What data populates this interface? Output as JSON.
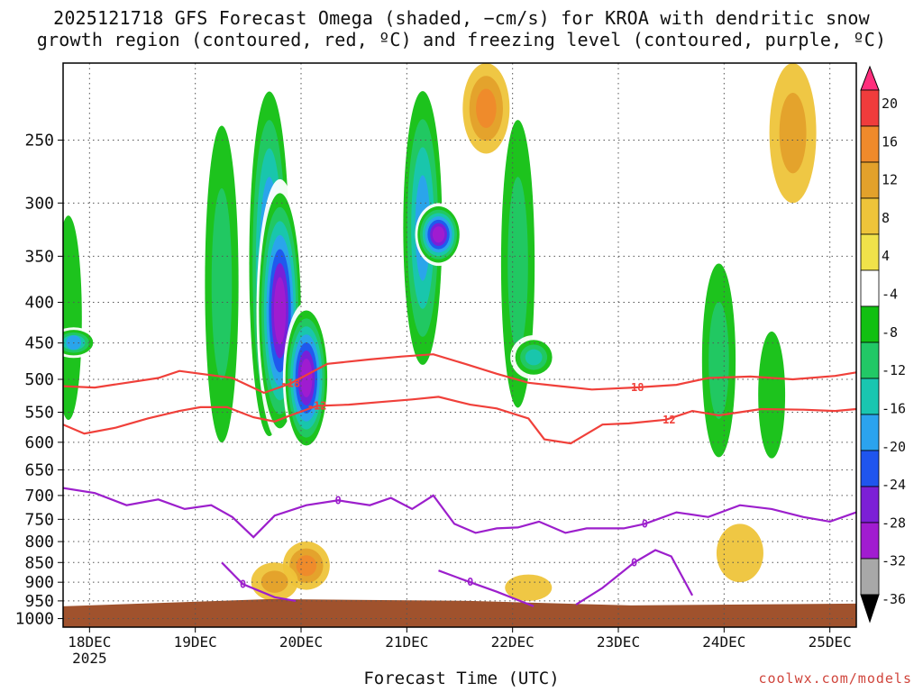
{
  "title": {
    "line1": "2025121718 GFS Forecast Omega (shaded, −cm/s) for KROA with dendritic snow",
    "line2": "growth region (contoured, red, ºC) and freezing level (contoured, purple, ºC)"
  },
  "credit": "coolwx.com/models",
  "chart_data": {
    "type": "heatmap",
    "xlabel": "Forecast Time (UTC)",
    "ylabel": "",
    "x_ticks": [
      "18DEC",
      "19DEC",
      "20DEC",
      "21DEC",
      "22DEC",
      "23DEC",
      "24DEC",
      "25DEC"
    ],
    "x_tick_sub": "2025",
    "x_range": [
      "2025-12-17 18Z",
      "2025-12-25 06Z"
    ],
    "y_ticks": [
      250,
      300,
      350,
      400,
      450,
      500,
      550,
      600,
      650,
      700,
      750,
      800,
      850,
      900,
      950,
      1000
    ],
    "y_range_hpa": [
      1025,
      200
    ],
    "y_scale": "log",
    "grid": "dotted",
    "colorbar": {
      "labels": [
        20,
        16,
        12,
        8,
        4,
        -4,
        -8,
        -12,
        -16,
        -20,
        -24,
        -28,
        -32,
        -36
      ],
      "colors": [
        "#ff2e7c",
        "#f03c3c",
        "#ef8a2b",
        "#e3a12b",
        "#eec43a",
        "#f0e24a",
        "#ffffff",
        "#11c011",
        "#22c866",
        "#19c6b0",
        "#2ba3ee",
        "#1f55ee",
        "#7c1fd6",
        "#a11cd0",
        "#a8a8a8",
        "#000000"
      ]
    },
    "dendritic_contours": {
      "color": "#f0403a",
      "levels": [
        {
          "label": "-18",
          "points": [
            [
              0.0,
              510
            ],
            [
              0.3,
              512
            ],
            [
              0.6,
              505
            ],
            [
              0.9,
              498
            ],
            [
              1.1,
              488
            ],
            [
              1.3,
              492
            ],
            [
              1.6,
              498
            ],
            [
              1.9,
              520
            ],
            [
              2.15,
              506
            ],
            [
              2.5,
              478
            ],
            [
              2.9,
              472
            ],
            [
              3.2,
              468
            ],
            [
              3.5,
              465
            ],
            [
              3.8,
              478
            ],
            [
              4.1,
              492
            ],
            [
              4.4,
              505
            ],
            [
              4.7,
              510
            ],
            [
              5.0,
              515
            ],
            [
              5.4,
              512
            ],
            [
              5.8,
              508
            ],
            [
              6.1,
              498
            ],
            [
              6.5,
              496
            ],
            [
              6.9,
              500
            ],
            [
              7.3,
              495
            ],
            [
              7.5,
              490
            ]
          ]
        },
        {
          "label": "-12",
          "points": [
            [
              0.0,
              570
            ],
            [
              0.2,
              585
            ],
            [
              0.5,
              575
            ],
            [
              0.8,
              560
            ],
            [
              1.1,
              548
            ],
            [
              1.3,
              542
            ],
            [
              1.55,
              542
            ],
            [
              1.8,
              558
            ],
            [
              2.0,
              565
            ],
            [
              2.15,
              555
            ],
            [
              2.4,
              540
            ],
            [
              2.7,
              538
            ],
            [
              3.0,
              534
            ],
            [
              3.3,
              530
            ],
            [
              3.55,
              526
            ],
            [
              3.85,
              538
            ],
            [
              4.1,
              544
            ],
            [
              4.4,
              560
            ],
            [
              4.55,
              595
            ],
            [
              4.8,
              602
            ],
            [
              5.1,
              570
            ],
            [
              5.35,
              568
            ],
            [
              5.7,
              562
            ],
            [
              5.95,
              548
            ],
            [
              6.2,
              555
            ],
            [
              6.4,
              550
            ],
            [
              6.6,
              545
            ],
            [
              7.0,
              546
            ],
            [
              7.3,
              548
            ],
            [
              7.5,
              545
            ]
          ]
        }
      ]
    },
    "freezing_contours": {
      "color": "#9c1fcc",
      "levels": [
        {
          "label": "0",
          "points": [
            [
              0.0,
              685
            ],
            [
              0.3,
              695
            ],
            [
              0.6,
              720
            ],
            [
              0.9,
              708
            ],
            [
              1.15,
              728
            ],
            [
              1.4,
              720
            ],
            [
              1.6,
              745
            ],
            [
              1.8,
              790
            ],
            [
              2.0,
              742
            ],
            [
              2.3,
              720
            ],
            [
              2.6,
              710
            ],
            [
              2.9,
              720
            ],
            [
              3.1,
              705
            ],
            [
              3.3,
              728
            ],
            [
              3.5,
              700
            ],
            [
              3.7,
              760
            ],
            [
              3.9,
              780
            ],
            [
              4.1,
              770
            ],
            [
              4.3,
              768
            ],
            [
              4.5,
              755
            ],
            [
              4.75,
              780
            ],
            [
              4.95,
              770
            ],
            [
              5.3,
              770
            ],
            [
              5.5,
              760
            ],
            [
              5.8,
              735
            ],
            [
              6.1,
              745
            ],
            [
              6.4,
              720
            ],
            [
              6.7,
              728
            ],
            [
              7.0,
              745
            ],
            [
              7.25,
              755
            ],
            [
              7.5,
              735
            ]
          ]
        },
        {
          "label": "0",
          "points": [
            [
              1.5,
              850
            ],
            [
              1.7,
              905
            ],
            [
              2.0,
              940
            ],
            [
              2.2,
              950
            ]
          ]
        },
        {
          "label": "0",
          "points": [
            [
              3.55,
              870
            ],
            [
              3.85,
              900
            ],
            [
              4.1,
              925
            ],
            [
              4.45,
              965
            ]
          ]
        },
        {
          "label": "0",
          "points": [
            [
              4.85,
              960
            ],
            [
              5.1,
              915
            ],
            [
              5.4,
              850
            ],
            [
              5.6,
              820
            ],
            [
              5.75,
              835
            ],
            [
              5.95,
              935
            ]
          ]
        }
      ]
    },
    "omega_field": {
      "note_units": "-cm/s",
      "features": [
        {
          "t": 0.05,
          "p_top": 250,
          "p_bot": 700,
          "value": -12
        },
        {
          "t": 0.1,
          "p_top": 430,
          "p_bot": 470,
          "value": -24
        },
        {
          "t": 1.5,
          "p_top": 200,
          "p_bot": 720,
          "value": -16
        },
        {
          "t": 1.95,
          "p_top": 200,
          "p_bot": 640,
          "value": -28
        },
        {
          "t": 2.05,
          "p_top": 280,
          "p_bot": 600,
          "value": -36
        },
        {
          "t": 2.3,
          "p_top": 400,
          "p_bot": 620,
          "value": -36
        },
        {
          "t": 3.4,
          "p_top": 200,
          "p_bot": 520,
          "value": -24
        },
        {
          "t": 3.55,
          "p_top": 300,
          "p_bot": 360,
          "value": -36
        },
        {
          "t": 4.3,
          "p_top": 200,
          "p_bot": 640,
          "value": -16
        },
        {
          "t": 4.45,
          "p_top": 440,
          "p_bot": 500,
          "value": -20
        },
        {
          "t": 6.2,
          "p_top": 320,
          "p_bot": 700,
          "value": -16
        },
        {
          "t": 6.7,
          "p_top": 380,
          "p_bot": 720,
          "value": -12
        },
        {
          "t": 2.3,
          "p_top": 800,
          "p_bot": 920,
          "value": 16
        },
        {
          "t": 2.0,
          "p_top": 850,
          "p_bot": 950,
          "value": 12
        },
        {
          "t": 4.4,
          "p_top": 880,
          "p_bot": 950,
          "value": 8
        },
        {
          "t": 6.4,
          "p_top": 760,
          "p_bot": 900,
          "value": 8
        },
        {
          "t": 4.0,
          "p_top": 200,
          "p_bot": 260,
          "value": 16
        },
        {
          "t": 6.9,
          "p_top": 200,
          "p_bot": 300,
          "value": 12
        }
      ]
    },
    "ground": {
      "color": "#a0522d",
      "p_top": 960
    }
  }
}
